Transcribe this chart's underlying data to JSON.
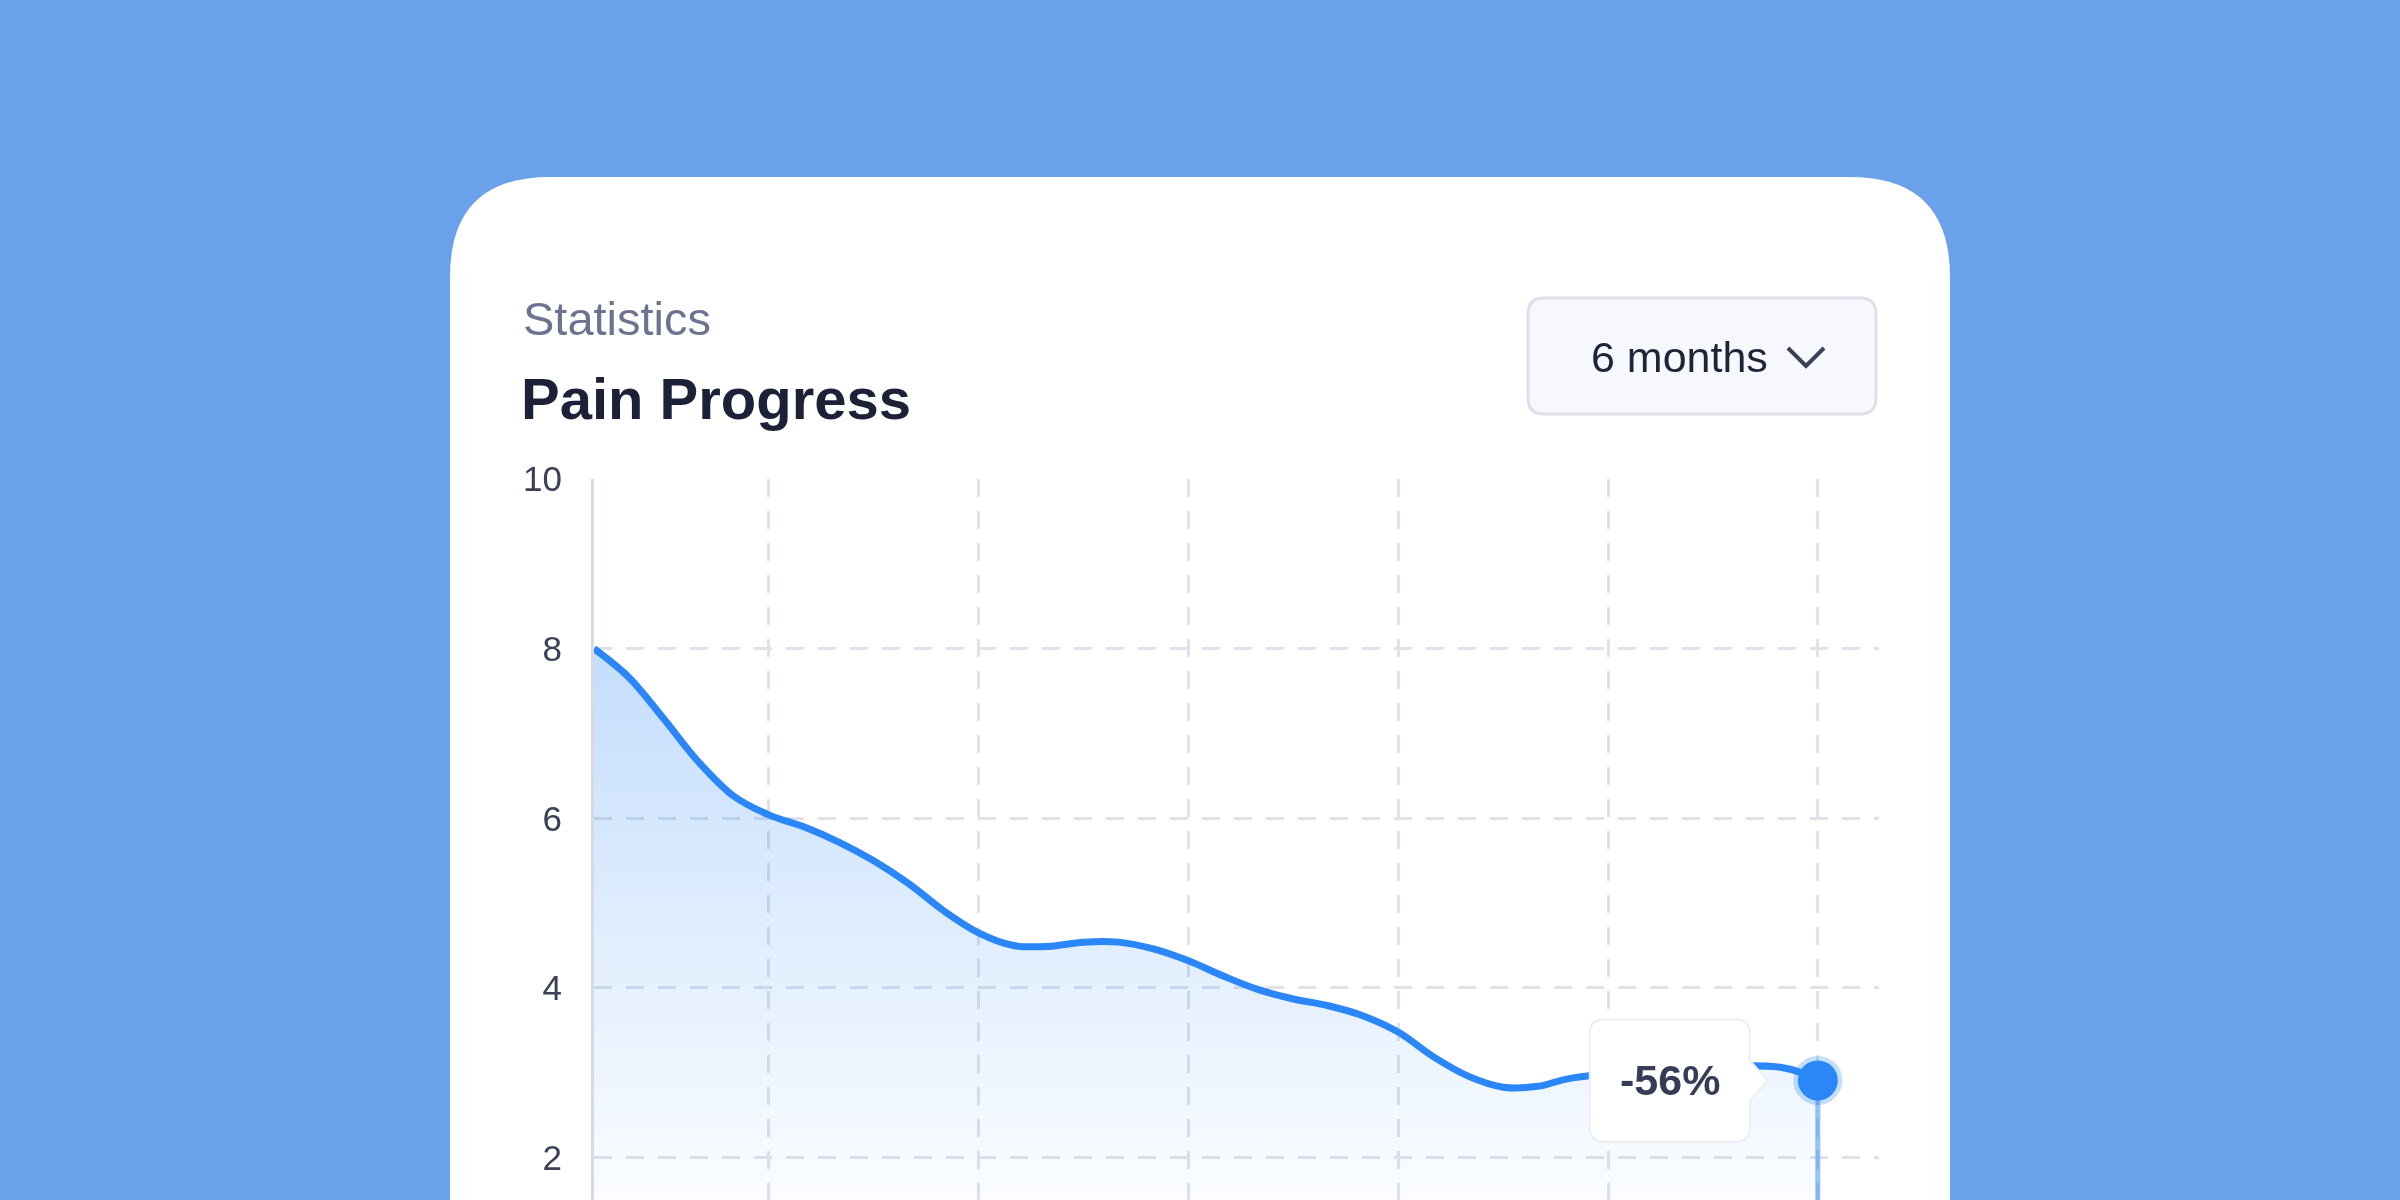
{
  "chart_data": {
    "type": "area",
    "subtitle": "Statistics",
    "title": "Pain Progress",
    "annotations": [
      "6 months",
      "-56%"
    ],
    "categories": [
      null,
      null,
      null,
      null,
      null,
      null,
      null,
      null,
      null,
      null,
      null,
      null,
      null,
      null,
      null,
      null,
      null,
      null,
      null,
      null,
      null,
      null,
      null,
      null,
      null,
      null,
      null,
      null,
      null,
      null,
      null,
      null,
      null,
      null,
      null,
      null
    ],
    "series": [
      {
        "color": "#2b87f7",
        "values": [
          8.0,
          7.66,
          7.17,
          6.66,
          6.26,
          6.04,
          5.9,
          5.72,
          5.5,
          5.23,
          4.91,
          4.65,
          4.5,
          4.49,
          4.54,
          4.54,
          4.46,
          4.32,
          4.14,
          3.98,
          3.87,
          3.79,
          3.67,
          3.48,
          3.19,
          2.96,
          2.83,
          2.84,
          2.94,
          null,
          null,
          null,
          null,
          null,
          3.06,
          2.91
        ]
      },
      {
        "type": "lollipop",
        "marker": "circle",
        "color": "#2b87f7",
        "values": [
          null,
          null,
          null,
          null,
          null,
          null,
          null,
          null,
          null,
          null,
          null,
          null,
          null,
          null,
          null,
          null,
          null,
          null,
          null,
          null,
          null,
          null,
          null,
          null,
          null,
          null,
          null,
          null,
          null,
          null,
          null,
          null,
          null,
          null,
          null,
          2.91
        ]
      }
    ],
    "ylim": [
      1.5,
      10
    ],
    "yticks": [
      2,
      4,
      6,
      8,
      10
    ],
    "grid": true,
    "tick_labels": "y"
  }
}
